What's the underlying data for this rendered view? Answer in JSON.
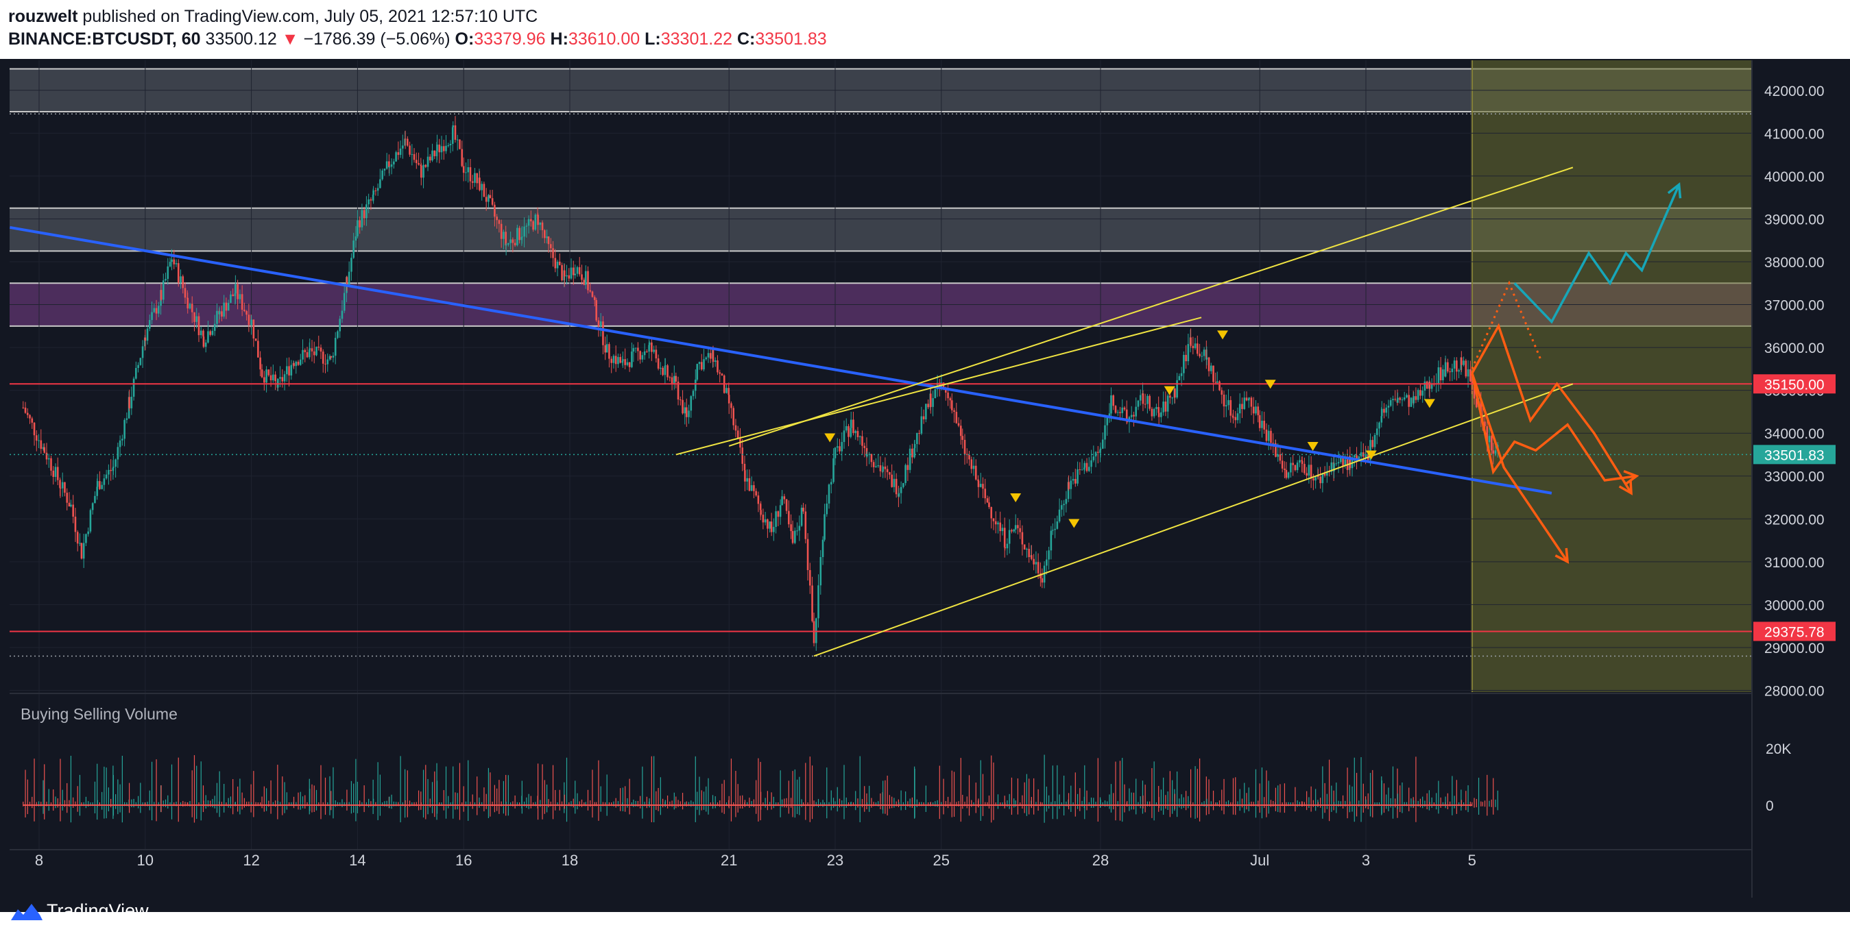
{
  "header": {
    "author": "rouzwelt",
    "published_text": "published on TradingView.com, July 05, 2021 12:57:10 UTC",
    "symbol": "BINANCE:BTCUSDT, 60",
    "last_price": "33500.12",
    "change": "−1786.39 (−5.06%)",
    "o_label": "O:",
    "o_value": "33379.96",
    "h_label": "H:",
    "h_value": "33610.00",
    "l_label": "L:",
    "l_value": "33301.22",
    "c_label": "C:",
    "c_value": "33501.83"
  },
  "footer": {
    "brand": "TradingView"
  },
  "colors": {
    "background": "#131722",
    "grid": "#1f2330",
    "up": "#26a69a",
    "down": "#ef5350",
    "trend_blue": "#2962ff",
    "channel_yellow": "#f0e442",
    "level_red": "#f23645",
    "projection_orange": "#ff5d12",
    "projection_cyan": "#17a6b8",
    "zone_purple": "#7b3f8c",
    "zone_gray": "#8a8f99",
    "zone_olive": "#6b7030"
  },
  "chart_data": {
    "type": "candlestick",
    "title": "BINANCE:BTCUSDT, 60",
    "x_ticks": [
      "8",
      "10",
      "12",
      "14",
      "16",
      "18",
      "21",
      "23",
      "25",
      "28",
      "Jul",
      "3",
      "5"
    ],
    "y_ticks": [
      "42000.00",
      "41000.00",
      "40000.00",
      "39000.00",
      "38000.00",
      "37000.00",
      "36000.00",
      "35000.00",
      "34000.00",
      "33000.00",
      "32000.00",
      "31000.00",
      "30000.00",
      "29000.00",
      "28000.00"
    ],
    "ylim": [
      27960,
      42700
    ],
    "price_labels": [
      {
        "label": "35150.00",
        "value": 35150,
        "color": "#f23645"
      },
      {
        "label": "33501.83",
        "value": 33501.83,
        "color": "#26a69a"
      },
      {
        "label": "29375.78",
        "value": 29375.78,
        "color": "#f23645"
      }
    ],
    "horizontal_levels": [
      35150,
      29375.78
    ],
    "zones": [
      {
        "name": "gray-top",
        "from": 41500,
        "to": 42500
      },
      {
        "name": "gray-mid",
        "from": 38250,
        "to": 39250
      },
      {
        "name": "purple",
        "from": 36500,
        "to": 37500
      }
    ],
    "path_points_day_price": [
      [
        7.7,
        34600
      ],
      [
        8.1,
        33600
      ],
      [
        8.4,
        32800
      ],
      [
        8.6,
        32300
      ],
      [
        8.8,
        31200
      ],
      [
        9.1,
        32800
      ],
      [
        9.4,
        33200
      ],
      [
        9.7,
        34700
      ],
      [
        10.0,
        36300
      ],
      [
        10.3,
        37200
      ],
      [
        10.5,
        38100
      ],
      [
        10.8,
        37100
      ],
      [
        11.1,
        36200
      ],
      [
        11.4,
        36800
      ],
      [
        11.7,
        37300
      ],
      [
        12.0,
        36600
      ],
      [
        12.2,
        35400
      ],
      [
        12.5,
        35100
      ],
      [
        12.8,
        35700
      ],
      [
        13.1,
        35900
      ],
      [
        13.5,
        35700
      ],
      [
        13.8,
        37500
      ],
      [
        14.0,
        38900
      ],
      [
        14.3,
        39500
      ],
      [
        14.6,
        40300
      ],
      [
        14.9,
        40800
      ],
      [
        15.2,
        40100
      ],
      [
        15.5,
        40600
      ],
      [
        15.8,
        41000
      ],
      [
        16.0,
        40200
      ],
      [
        16.3,
        39800
      ],
      [
        16.5,
        39300
      ],
      [
        16.8,
        38400
      ],
      [
        17.1,
        38700
      ],
      [
        17.4,
        39000
      ],
      [
        17.6,
        38300
      ],
      [
        17.9,
        37600
      ],
      [
        18.1,
        37900
      ],
      [
        18.3,
        37600
      ],
      [
        18.5,
        36800
      ],
      [
        18.7,
        35900
      ],
      [
        19.0,
        35600
      ],
      [
        19.2,
        35800
      ],
      [
        19.5,
        36000
      ],
      [
        19.8,
        35400
      ],
      [
        20.0,
        35100
      ],
      [
        20.2,
        34300
      ],
      [
        20.4,
        35600
      ],
      [
        20.7,
        35800
      ],
      [
        21.0,
        34700
      ],
      [
        21.3,
        33000
      ],
      [
        21.6,
        32200
      ],
      [
        21.8,
        31700
      ],
      [
        22.0,
        32500
      ],
      [
        22.2,
        31400
      ],
      [
        22.4,
        32300
      ],
      [
        22.6,
        29100
      ],
      [
        22.8,
        32200
      ],
      [
        23.0,
        33500
      ],
      [
        23.3,
        34200
      ],
      [
        23.6,
        33600
      ],
      [
        23.9,
        33100
      ],
      [
        24.2,
        32700
      ],
      [
        24.5,
        33800
      ],
      [
        24.8,
        34800
      ],
      [
        25.0,
        35100
      ],
      [
        25.2,
        34700
      ],
      [
        25.4,
        33700
      ],
      [
        25.7,
        32800
      ],
      [
        25.9,
        32300
      ],
      [
        26.2,
        31500
      ],
      [
        26.4,
        31800
      ],
      [
        26.7,
        31100
      ],
      [
        26.9,
        30700
      ],
      [
        27.1,
        31700
      ],
      [
        27.4,
        32800
      ],
      [
        27.7,
        33200
      ],
      [
        28.0,
        33600
      ],
      [
        28.2,
        34800
      ],
      [
        28.5,
        34300
      ],
      [
        28.8,
        34800
      ],
      [
        29.1,
        34400
      ],
      [
        29.4,
        35000
      ],
      [
        29.7,
        36200
      ],
      [
        30.0,
        35700
      ],
      [
        30.2,
        35100
      ],
      [
        30.5,
        34400
      ],
      [
        30.8,
        34900
      ],
      [
        31.0,
        34300
      ],
      [
        31.3,
        33600
      ],
      [
        31.5,
        33100
      ],
      [
        31.8,
        33300
      ],
      [
        32.1,
        32900
      ],
      [
        32.4,
        33300
      ],
      [
        32.7,
        33300
      ],
      [
        33.0,
        33400
      ],
      [
        33.3,
        34500
      ],
      [
        33.6,
        34800
      ],
      [
        33.9,
        34700
      ],
      [
        34.2,
        35200
      ],
      [
        34.5,
        35500
      ],
      [
        34.8,
        35600
      ],
      [
        35.0,
        35200
      ],
      [
        35.2,
        34200
      ],
      [
        35.4,
        33500
      ],
      [
        35.5,
        33700
      ]
    ],
    "trendlines_day_price": {
      "blue_down": [
        [
          7.45,
          38800
        ],
        [
          36.5,
          32600
        ]
      ],
      "channel_upper": [
        [
          21.0,
          33700
        ],
        [
          36.9,
          40200
        ]
      ],
      "channel_lower": [
        [
          22.6,
          28800
        ],
        [
          36.9,
          35150
        ]
      ],
      "channel_mid_upper": [
        [
          20.0,
          33500
        ],
        [
          29.9,
          36700
        ]
      ]
    },
    "projections_day_price": {
      "orange_down_right": [
        [
          35.0,
          35400
        ],
        [
          35.4,
          33100
        ],
        [
          35.8,
          33800
        ],
        [
          36.2,
          33600
        ],
        [
          36.8,
          34200
        ],
        [
          37.5,
          32900
        ],
        [
          38.1,
          33000
        ]
      ],
      "orange_down_left": [
        [
          35.0,
          35400
        ],
        [
          35.5,
          36500
        ],
        [
          36.1,
          34300
        ],
        [
          36.6,
          35150
        ],
        [
          37.3,
          34000
        ],
        [
          38.0,
          32600
        ]
      ],
      "orange_deep": [
        [
          35.0,
          35400
        ],
        [
          35.6,
          33200
        ],
        [
          36.8,
          31000
        ]
      ],
      "cyan_up": [
        [
          35.8,
          37500
        ],
        [
          36.5,
          36600
        ],
        [
          37.2,
          38200
        ],
        [
          37.6,
          37500
        ],
        [
          37.9,
          38200
        ],
        [
          38.2,
          37800
        ],
        [
          38.9,
          39800
        ]
      ],
      "orange_dotted": [
        [
          35.0,
          35500
        ],
        [
          35.7,
          37500
        ],
        [
          36.3,
          35700
        ]
      ]
    },
    "volume": {
      "label": "Buying Selling Volume",
      "y_ticks": [
        "20K",
        "0"
      ]
    },
    "annotations": {
      "down_markers_day_price": [
        [
          22.9,
          33900
        ],
        [
          26.4,
          32500
        ],
        [
          27.5,
          31900
        ],
        [
          29.3,
          35000
        ],
        [
          30.3,
          36300
        ],
        [
          31.2,
          35150
        ],
        [
          32.0,
          33700
        ],
        [
          33.1,
          33500
        ],
        [
          34.2,
          34700
        ]
      ],
      "vertical_line_day": 35.0
    }
  }
}
